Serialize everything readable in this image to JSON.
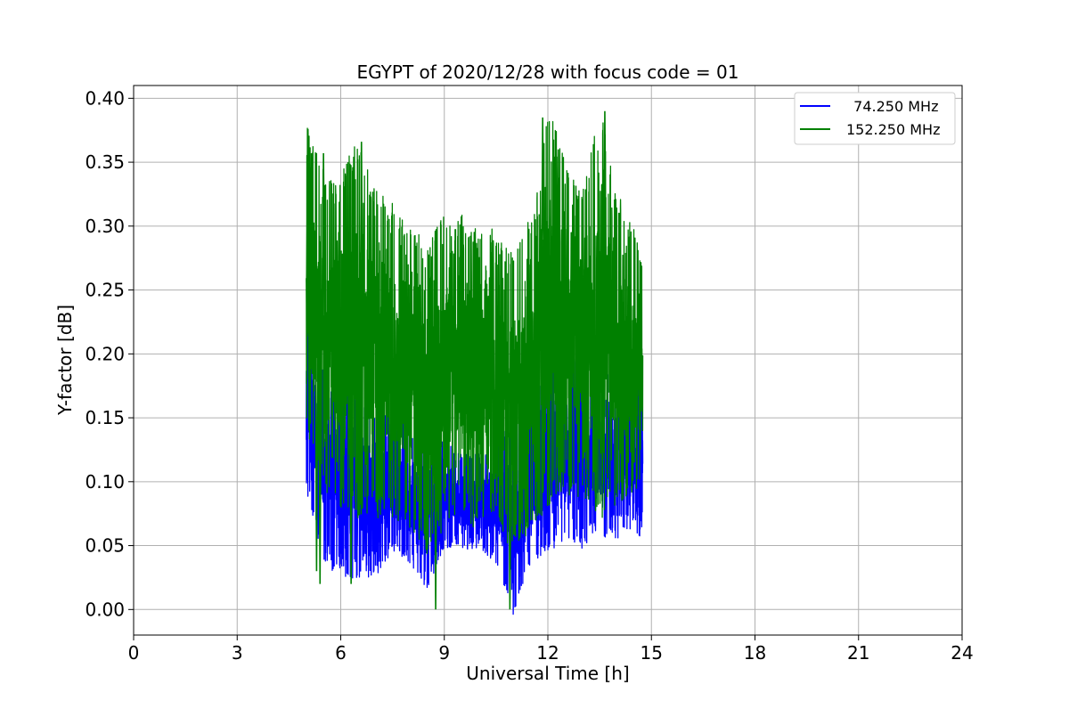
{
  "chart_data": {
    "type": "line",
    "title": "EGYPT of 2020/12/28 with focus code = 01",
    "xlabel": "Universal Time [h]",
    "ylabel": "Y-factor [dB]",
    "xlim": [
      0,
      24
    ],
    "ylim": [
      -0.02,
      0.41
    ],
    "xticks": [
      0,
      3,
      6,
      9,
      12,
      15,
      18,
      21,
      24
    ],
    "xtick_labels": [
      "0",
      "3",
      "6",
      "9",
      "12",
      "15",
      "18",
      "21",
      "24"
    ],
    "yticks": [
      0.0,
      0.05,
      0.1,
      0.15,
      0.2,
      0.25,
      0.3,
      0.35,
      0.4
    ],
    "ytick_labels": [
      "0.00",
      "0.05",
      "0.10",
      "0.15",
      "0.20",
      "0.25",
      "0.30",
      "0.35",
      "0.40"
    ],
    "grid": true,
    "legend_position": "top-right",
    "series": [
      {
        "name": "  74.250 MHz",
        "color": "#0000ff",
        "x_range": [
          5.0,
          14.75
        ],
        "envelope": {
          "x": [
            5.0,
            5.5,
            6.0,
            6.5,
            7.0,
            7.5,
            8.0,
            8.5,
            9.0,
            9.5,
            10.0,
            10.5,
            11.0,
            11.5,
            12.0,
            12.5,
            13.0,
            13.5,
            14.0,
            14.5,
            14.75
          ],
          "low": [
            0.1,
            0.04,
            0.03,
            0.03,
            0.03,
            0.05,
            0.04,
            0.02,
            0.05,
            0.05,
            0.05,
            0.04,
            0.0,
            0.04,
            0.05,
            0.06,
            0.05,
            0.06,
            0.06,
            0.07,
            0.05
          ],
          "high": [
            0.24,
            0.18,
            0.17,
            0.16,
            0.16,
            0.15,
            0.14,
            0.14,
            0.13,
            0.12,
            0.12,
            0.13,
            0.14,
            0.16,
            0.19,
            0.2,
            0.19,
            0.18,
            0.18,
            0.19,
            0.18
          ]
        }
      },
      {
        "name": "152.250 MHz",
        "color": "#008000",
        "x_range": [
          5.0,
          14.75
        ],
        "envelope": {
          "x": [
            5.0,
            5.5,
            6.0,
            6.5,
            7.0,
            7.5,
            8.0,
            8.5,
            9.0,
            9.5,
            10.0,
            10.5,
            11.0,
            11.5,
            12.0,
            12.5,
            13.0,
            13.5,
            14.0,
            14.5,
            14.75
          ],
          "low": [
            0.15,
            0.1,
            0.09,
            0.08,
            0.08,
            0.08,
            0.07,
            0.05,
            0.07,
            0.08,
            0.07,
            0.08,
            0.05,
            0.07,
            0.09,
            0.1,
            0.09,
            0.08,
            0.09,
            0.1,
            0.1
          ],
          "high": [
            0.37,
            0.34,
            0.33,
            0.36,
            0.32,
            0.31,
            0.29,
            0.28,
            0.3,
            0.3,
            0.29,
            0.29,
            0.27,
            0.3,
            0.38,
            0.35,
            0.32,
            0.39,
            0.32,
            0.29,
            0.27
          ]
        },
        "peaks": [
          [
            5.05,
            0.376
          ],
          [
            5.15,
            0.357
          ],
          [
            5.5,
            0.357
          ],
          [
            6.6,
            0.366
          ],
          [
            13.65,
            0.39
          ],
          [
            12.3,
            0.36
          ],
          [
            11.85,
            0.385
          ]
        ],
        "troughs": [
          [
            8.75,
            0.0
          ],
          [
            10.9,
            0.0
          ],
          [
            5.3,
            0.03
          ],
          [
            5.4,
            0.02
          ],
          [
            6.3,
            0.02
          ]
        ]
      }
    ]
  }
}
